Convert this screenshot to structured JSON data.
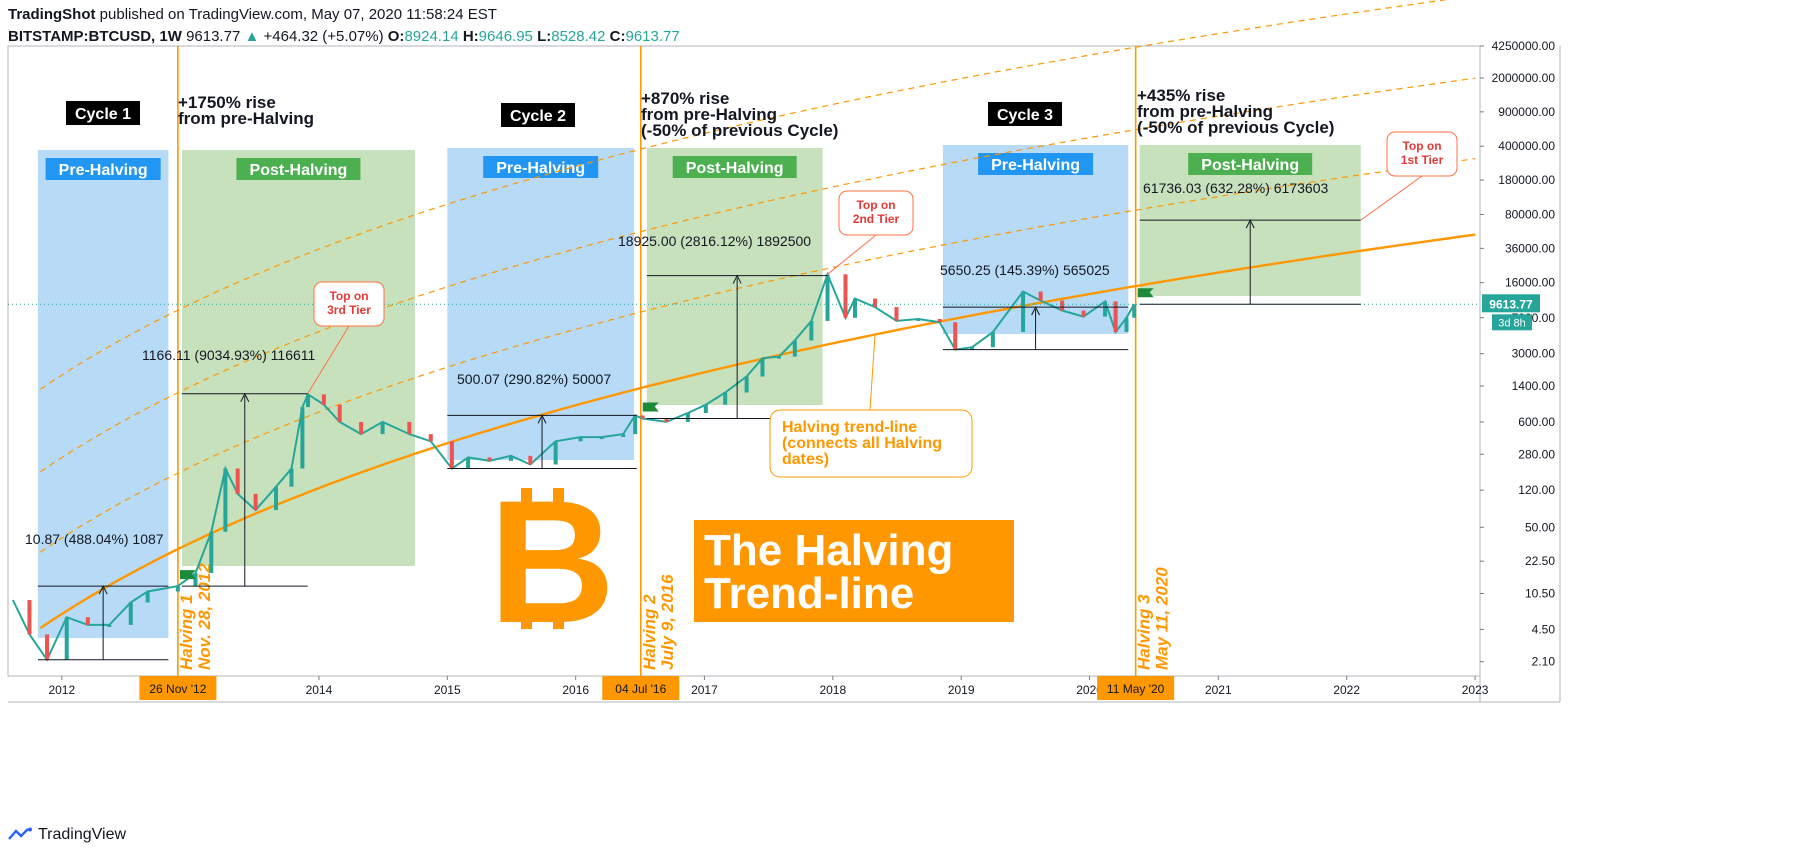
{
  "header": {
    "publisher_name": "TradingShot",
    "publisher_text": "published on TradingView.com, May 07, 2020 11:58:24 EST",
    "symbol": "BITSTAMP:BTCUSD, 1W",
    "last": "9613.77",
    "change": "+464.32 (+5.07%)",
    "o_label": "O:",
    "o_value": "8924.14",
    "h_label": "H:",
    "h_value": "9646.95",
    "l_label": "L:",
    "l_value": "8528.42",
    "c_label": "C:",
    "c_value": "9613.77"
  },
  "footer": {
    "brand": "TradingView"
  },
  "chart_data": {
    "type": "line",
    "title": "The Halving Trend-line",
    "y_scale": "log",
    "ylim": [
      1.5,
      4250000
    ],
    "xlim": [
      "2011-08-01",
      "2023-01-15"
    ],
    "x_ticks": [
      "2012",
      "2014",
      "2015",
      "2016",
      "2017",
      "2018",
      "2019",
      "2020",
      "2021",
      "2022",
      "2023"
    ],
    "y_ticks": [
      "4250000.00",
      "2000000.00",
      "900000.00",
      "400000.00",
      "180000.00",
      "80000.00",
      "36000.00",
      "16000.00",
      "7000.00",
      "3000.00",
      "1400.00",
      "600.00",
      "280.00",
      "120.00",
      "50.00",
      "22.50",
      "10.50",
      "4.50",
      "2.10"
    ],
    "current_price": "9613.77",
    "countdown": "3d 8h",
    "series": [
      {
        "name": "BTCUSD",
        "x": [
          "2011-08-15",
          "2011-10-01",
          "2011-11-20",
          "2012-01-15",
          "2012-03-15",
          "2012-05-15",
          "2012-07-15",
          "2012-09-01",
          "2012-11-26",
          "2013-01-15",
          "2013-03-01",
          "2013-04-10",
          "2013-05-15",
          "2013-07-05",
          "2013-09-01",
          "2013-10-15",
          "2013-11-15",
          "2013-12-01",
          "2014-01-15",
          "2014-03-01",
          "2014-05-01",
          "2014-07-01",
          "2014-09-15",
          "2014-11-15",
          "2015-01-14",
          "2015-03-01",
          "2015-05-01",
          "2015-07-01",
          "2015-08-25",
          "2015-11-05",
          "2016-01-15",
          "2016-03-15",
          "2016-05-15",
          "2016-06-18",
          "2016-07-09",
          "2016-09-15",
          "2016-11-15",
          "2017-01-05",
          "2017-03-01",
          "2017-05-01",
          "2017-06-15",
          "2017-08-01",
          "2017-09-15",
          "2017-11-01",
          "2017-12-17",
          "2018-02-06",
          "2018-03-05",
          "2018-05-01",
          "2018-07-01",
          "2018-09-01",
          "2018-11-01",
          "2018-12-15",
          "2019-02-01",
          "2019-04-01",
          "2019-06-26",
          "2019-08-15",
          "2019-10-15",
          "2019-12-15",
          "2020-02-14",
          "2020-03-15",
          "2020-04-15",
          "2020-05-07"
        ],
        "values": [
          9,
          4,
          2.2,
          6,
          5,
          5,
          8.5,
          11,
          12.5,
          17,
          45,
          200,
          110,
          75,
          130,
          200,
          850,
          1150,
          900,
          600,
          450,
          600,
          450,
          380,
          200,
          260,
          240,
          270,
          220,
          380,
          420,
          420,
          450,
          700,
          650,
          600,
          740,
          900,
          1200,
          1750,
          2700,
          2800,
          4100,
          6500,
          19500,
          7000,
          11000,
          9000,
          6500,
          6800,
          6300,
          3300,
          3500,
          5000,
          13000,
          10500,
          8300,
          7200,
          10300,
          5000,
          7000,
          9613.77
        ]
      },
      {
        "name": "Halving trend-line"
      }
    ],
    "halvings": [
      {
        "label": "Halving 1",
        "date_label": "Nov. 28, 2012",
        "axis_label": "26 Nov '12"
      },
      {
        "label": "Halving 2",
        "date_label": "July 9, 2016",
        "axis_label": "04 Jul '16"
      },
      {
        "label": "Halving 3",
        "date_label": "May 11, 2020",
        "axis_label": "11 May '20"
      }
    ],
    "cycles": [
      {
        "label": "Cycle 1",
        "rise": [
          "+1750% rise",
          "from pre-Halving"
        ]
      },
      {
        "label": "Cycle 2",
        "rise": [
          "+870% rise",
          "from pre-Halving",
          "(-50% of previous Cycle)"
        ]
      },
      {
        "label": "Cycle 3",
        "rise": [
          "+435% rise",
          "from pre-Halving",
          "(-50% of previous Cycle)"
        ]
      }
    ],
    "zones": {
      "pre": "Pre-Halving",
      "post": "Post-Halving"
    },
    "measurements": [
      "10.87 (488.04%) 1087",
      "1166.11 (9034.93%) 116611",
      "500.07 (290.82%) 50007",
      "18925.00 (2816.12%) 1892500",
      "5650.25 (145.39%) 565025",
      "61736.03 (632.28%) 6173603"
    ],
    "callouts": {
      "top3": [
        "Top on",
        "3rd Tier"
      ],
      "top2": [
        "Top on",
        "2nd Tier"
      ],
      "top1": [
        "Top on",
        "1st Tier"
      ],
      "trend": [
        "Halving trend-line",
        "(connects all Halving",
        "dates)"
      ]
    },
    "big_title": [
      "The Halving",
      "Trend-line"
    ],
    "logo_symbol": "B",
    "colors": {
      "orange": "#ff9800",
      "pre_fill": "#b3d8f7",
      "post_fill": "#c5dfb9",
      "pre_label_bg": "#2196f3",
      "post_label_bg": "#4caf50",
      "up": "#26a69a",
      "down": "#ef5350",
      "callout_text": "#e53935",
      "callout_border": "#ff7043",
      "price_label_bg": "#26a69a"
    }
  }
}
